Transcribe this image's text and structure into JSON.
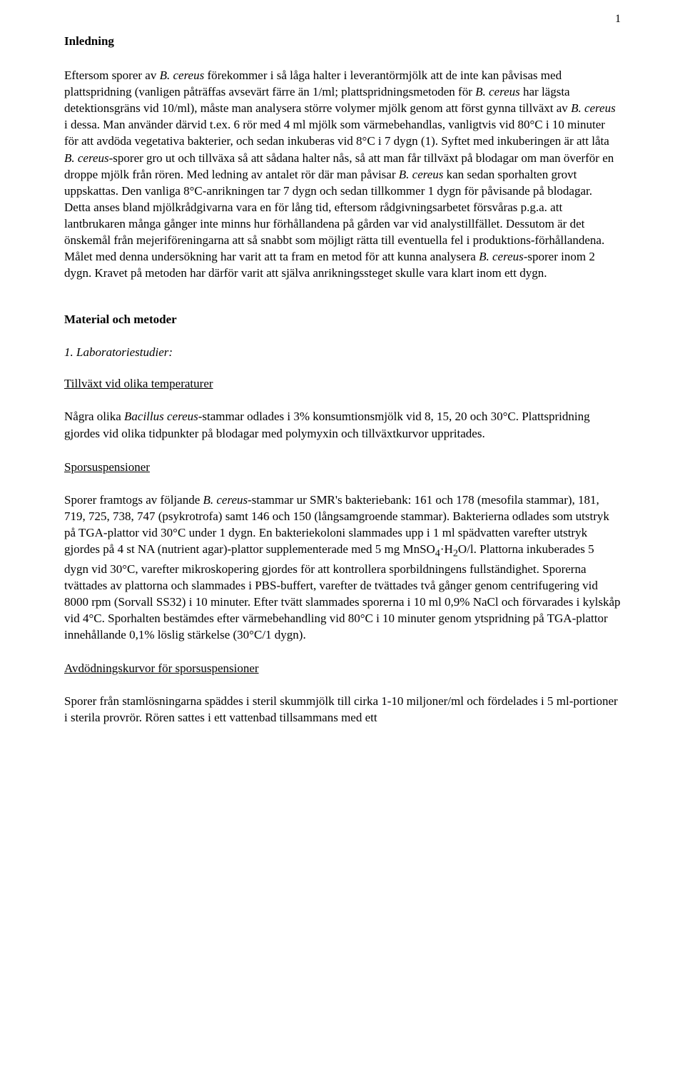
{
  "page_number": "1",
  "intro_heading": "Inledning",
  "intro_paragraph_html": "Eftersom sporer av <span class=\"italic\">B. cereus</span> förekommer i så låga halter i leverantörmjölk att de inte kan påvisas med plattspridning (vanligen påträffas avsevärt färre än 1/ml; plattspridningsmetoden för <span class=\"italic\">B. cereus</span> har lägsta detektionsgräns vid 10/ml), måste man analysera större volymer mjölk genom att först gynna tillväxt av <span class=\"italic\">B. cereus</span> i dessa. Man använder därvid t.ex. 6 rör med 4 ml mjölk som värmebehandlas, vanligtvis vid 80°C i 10 minuter för att avdöda vegetativa bakterier, och sedan inkuberas vid 8°C i 7 dygn (1). Syftet med inkuberingen är att låta <span class=\"italic\">B. cereus</span>-sporer gro ut och tillväxa så att sådana halter nås, så att man får tillväxt på blodagar om man överför en droppe mjölk från rören. Med ledning av antalet rör där man påvisar <span class=\"italic\">B. cereus</span> kan sedan sporhalten grovt uppskattas. Den vanliga 8°C-anrikningen tar 7 dygn och sedan tillkommer 1 dygn för påvisande på blodagar. Detta anses bland mjölkrådgivarna vara en för lång tid, eftersom rådgivningsarbetet försvåras p.g.a. att lantbrukaren många gånger inte minns hur förhållandena på gården var vid analystillfället. Dessutom är det önskemål från mejeriföreningarna att så snabbt som möjligt rätta till eventuella fel i produktions-förhållandena. Målet med denna undersökning har varit att ta fram en metod för att kunna analysera <span class=\"italic\">B. cereus</span>-sporer inom 2 dygn. Kravet på metoden har därför varit att själva anrikningssteget skulle vara klart inom ett dygn.",
  "mm_heading": "Material och metoder",
  "lab_studies_heading": "1. Laboratoriestudier:",
  "sub1_heading": "Tillväxt vid olika temperaturer",
  "sub1_para_html": "Några olika <span class=\"italic\">Bacillus cereus</span>-stammar odlades i 3% konsumtionsmjölk vid 8, 15, 20 och 30°C. Plattspridning gjordes vid olika tidpunkter på blodagar med polymyxin och tillväxtkurvor uppritades.",
  "sub2_heading": "Sporsuspensioner",
  "sub2_para_html": "Sporer framtogs av följande <span class=\"italic\">B. cereus</span>-stammar ur SMR's bakteriebank: 161 och 178 (mesofila stammar), 181, 719, 725, 738, 747 (psykrotrofa) samt 146 och 150 (långsamgroende stammar). Bakterierna odlades som utstryk på TGA-plattor vid 30°C under 1 dygn. En bakteriekoloni slammades upp i 1 ml spädvatten varefter utstryk gjordes på 4 st NA (nutrient agar)-plattor supplementerade med 5 mg MnSO<sub>4</sub>·H<sub>2</sub>O/l. Plattorna inkuberades 5 dygn vid 30°C, varefter mikroskopering gjordes för att kontrollera sporbildningens fullständighet. Sporerna tvättades av plattorna och slammades i PBS-buffert, varefter de tvättades två gånger genom centrifugering vid 8000 rpm (Sorvall SS32) i 10 minuter. Efter tvätt slammades sporerna i 10 ml 0,9% NaCl och förvarades i kylskåp vid 4°C. Sporhalten bestämdes efter värmebehandling vid 80°C i 10 minuter genom ytspridning på TGA-plattor innehållande 0,1% löslig stärkelse (30°C/1 dygn).",
  "sub3_heading": "Avdödningskurvor för sporsuspensioner",
  "sub3_para": "Sporer från stamlösningarna späddes i steril skummjölk till cirka 1-10 miljoner/ml och fördelades i 5 ml-portioner i sterila provrör. Rören sattes i ett vattenbad tillsammans med ett"
}
